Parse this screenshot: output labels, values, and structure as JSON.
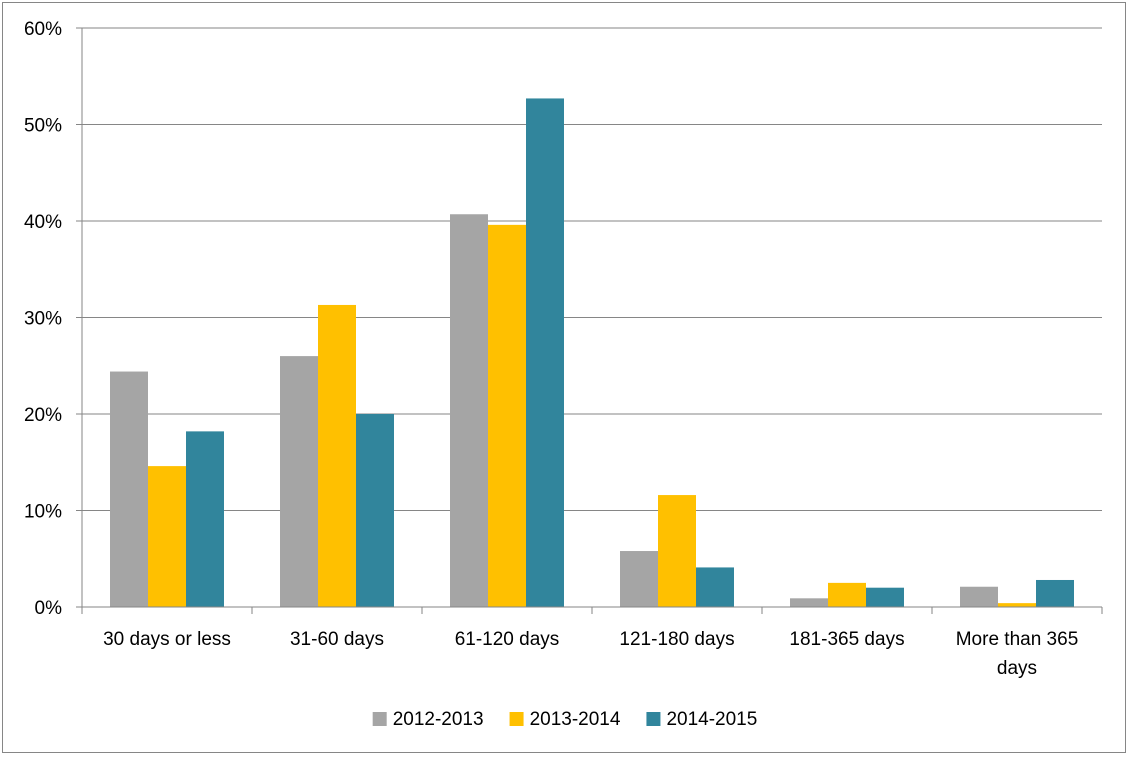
{
  "chart_data": {
    "type": "bar",
    "title": "",
    "xlabel": "",
    "ylabel": "",
    "ylim": [
      0,
      60
    ],
    "yticks": [
      0,
      10,
      20,
      30,
      40,
      50,
      60
    ],
    "ytick_labels": [
      "0%",
      "10%",
      "20%",
      "30%",
      "40%",
      "50%",
      "60%"
    ],
    "grid": true,
    "legend_position": "bottom",
    "categories": [
      [
        "30 days or less"
      ],
      [
        "31-60 days"
      ],
      [
        "61-120 days"
      ],
      [
        "121-180 days"
      ],
      [
        "181-365 days"
      ],
      [
        "More than 365",
        "days"
      ]
    ],
    "series": [
      {
        "name": "2012-2013",
        "color": "#a5a5a5",
        "values": [
          24.4,
          26.0,
          40.7,
          5.8,
          0.9,
          2.1
        ]
      },
      {
        "name": "2013-2014",
        "color": "#ffc000",
        "values": [
          14.6,
          31.3,
          39.6,
          11.6,
          2.5,
          0.4
        ]
      },
      {
        "name": "2014-2015",
        "color": "#31859c",
        "values": [
          18.2,
          20.0,
          52.7,
          4.1,
          2.0,
          2.8
        ]
      }
    ]
  }
}
